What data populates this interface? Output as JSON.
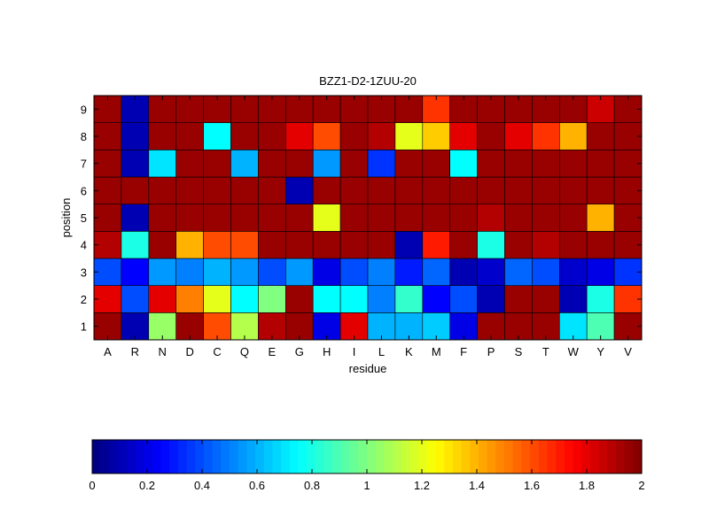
{
  "chart_data": {
    "type": "heatmap",
    "title": "BZZ1-D2-1ZUU-20",
    "xlabel": "residue",
    "ylabel": "position",
    "x": [
      "A",
      "R",
      "N",
      "D",
      "C",
      "Q",
      "E",
      "G",
      "H",
      "I",
      "L",
      "K",
      "M",
      "F",
      "P",
      "S",
      "T",
      "W",
      "Y",
      "V"
    ],
    "y": [
      1,
      2,
      3,
      4,
      5,
      6,
      7,
      8,
      9
    ],
    "values": [
      [
        1.95,
        0.1,
        1.05,
        1.95,
        1.6,
        1.1,
        1.9,
        1.95,
        0.2,
        1.8,
        0.6,
        0.6,
        0.65,
        0.2,
        1.95,
        1.95,
        1.95,
        0.7,
        0.9,
        1.95
      ],
      [
        1.8,
        0.4,
        1.8,
        1.5,
        1.2,
        0.75,
        1.0,
        1.95,
        0.75,
        0.75,
        0.5,
        0.85,
        0.25,
        0.4,
        0.1,
        1.95,
        1.95,
        0.1,
        0.8,
        1.65
      ],
      [
        0.4,
        0.25,
        0.55,
        0.5,
        0.6,
        0.55,
        0.4,
        0.55,
        0.2,
        0.4,
        0.5,
        0.3,
        0.45,
        0.1,
        0.15,
        0.45,
        0.4,
        0.15,
        0.2,
        0.35
      ],
      [
        1.9,
        0.8,
        1.95,
        1.4,
        1.6,
        1.6,
        1.95,
        1.95,
        1.95,
        1.95,
        1.95,
        0.1,
        1.7,
        1.95,
        0.8,
        1.95,
        1.9,
        1.95,
        1.95,
        1.95
      ],
      [
        1.95,
        0.1,
        1.95,
        1.95,
        1.95,
        1.95,
        1.95,
        1.95,
        1.2,
        1.95,
        1.95,
        1.95,
        1.95,
        1.95,
        1.9,
        1.95,
        1.95,
        1.95,
        1.4,
        1.95
      ],
      [
        1.95,
        1.95,
        1.95,
        1.95,
        1.95,
        1.95,
        1.95,
        0.1,
        1.95,
        1.95,
        1.95,
        1.95,
        1.95,
        1.95,
        1.95,
        1.95,
        1.95,
        1.95,
        1.95,
        1.95
      ],
      [
        1.95,
        0.1,
        0.7,
        1.95,
        1.95,
        0.6,
        1.95,
        1.95,
        0.55,
        1.95,
        0.35,
        1.95,
        1.95,
        0.75,
        1.95,
        1.95,
        1.95,
        1.95,
        1.95,
        1.95
      ],
      [
        1.95,
        0.1,
        1.95,
        1.95,
        0.75,
        1.95,
        1.95,
        1.8,
        1.6,
        1.95,
        1.9,
        1.2,
        1.35,
        1.8,
        1.95,
        1.8,
        1.65,
        1.4,
        1.95,
        1.95
      ],
      [
        1.95,
        0.1,
        1.95,
        1.95,
        1.95,
        1.95,
        1.95,
        1.95,
        1.95,
        1.95,
        1.95,
        1.95,
        1.65,
        1.95,
        1.95,
        1.95,
        1.95,
        1.95,
        1.85,
        1.95
      ]
    ],
    "colorbar": {
      "range": [
        0,
        2
      ],
      "ticks": [
        0,
        0.2,
        0.4,
        0.6,
        0.8,
        1,
        1.2,
        1.4,
        1.6,
        1.8,
        2
      ],
      "tick_labels": [
        "0",
        "0.2",
        "0.4",
        "0.6",
        "0.8",
        "1",
        "1.2",
        "1.4",
        "1.6",
        "1.8",
        "2"
      ],
      "orientation": "horizontal",
      "levels": 64
    },
    "colormap": "jet",
    "grid": false
  }
}
